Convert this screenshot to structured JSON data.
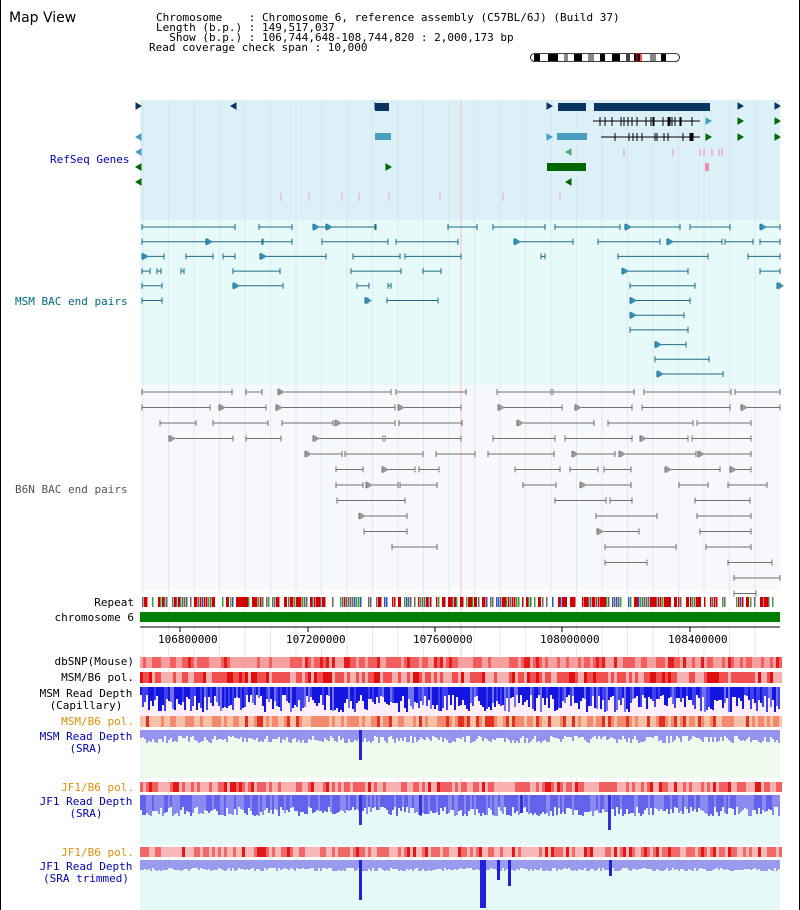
{
  "header": {
    "map_title": "Map View",
    "info_lines": [
      "Chromosome    : Chromosome 6, reference assembly (C57BL/6J) (Build 37)",
      "Length (b.p.) : 149,517,037",
      "  Show (b.p.) : 106,744,648-108,744,820 : 2,000,173 bp",
      "Read coverage check span : 10,000"
    ]
  },
  "tracks": {
    "refseq": "RefSeq Genes",
    "msm_bac": "MSM BAC end pairs",
    "b6n_bac": "B6N BAC end pairs",
    "repeat": "Repeat",
    "chromosome": "chromosome 6",
    "dbsnp": "dbSNP(Mouse)",
    "msm_b6_pol_1": "MSM/B6 pol.",
    "msm_read_depth_cap_1": "MSM Read Depth",
    "msm_read_depth_cap_2": "(Capillary)",
    "msm_b6_pol_2": "MSM/B6 pol.",
    "msm_read_depth_sra_1": "MSM Read Depth",
    "msm_read_depth_sra_2": "(SRA)",
    "jf1_b6_pol_1": "JF1/B6 pol.",
    "jf1_read_depth_sra_1": "JF1 Read Depth",
    "jf1_read_depth_sra_2": "(SRA)",
    "jf1_b6_pol_2": "JF1/B6 pol.",
    "jf1_read_depth_trim_1": "JF1 Read Depth",
    "jf1_read_depth_trim_2": "(SRA trimmed)"
  },
  "axis": {
    "ticks": [
      "106800000",
      "107200000",
      "107600000",
      "108000000",
      "108400000"
    ]
  },
  "colors": {
    "refseq_bg": "#dcf0f8",
    "msm_bg": "#e6fafa",
    "b6n_bg": "#f7f8fb",
    "refseq_dark": "#0b3560",
    "refseq_light": "#4a9ec0",
    "refseq_green": "#006600",
    "msm_line": "#1d6a86",
    "b6n_line": "#707070",
    "chrom_green": "#008000",
    "snp_red": "#ee2222",
    "depth_blue": "#1010e0"
  },
  "icons": [
    "ideogram-icon"
  ]
}
